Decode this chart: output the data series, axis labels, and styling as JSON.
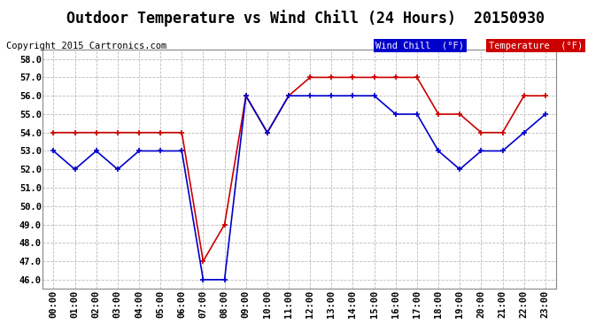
{
  "title": "Outdoor Temperature vs Wind Chill (24 Hours)  20150930",
  "copyright": "Copyright 2015 Cartronics.com",
  "background_color": "#ffffff",
  "grid_color": "#bbbbbb",
  "x_labels": [
    "00:00",
    "01:00",
    "02:00",
    "03:00",
    "04:00",
    "05:00",
    "06:00",
    "07:00",
    "08:00",
    "09:00",
    "10:00",
    "11:00",
    "12:00",
    "13:00",
    "14:00",
    "15:00",
    "16:00",
    "17:00",
    "18:00",
    "19:00",
    "20:00",
    "21:00",
    "22:00",
    "23:00"
  ],
  "ylim": [
    45.5,
    58.5
  ],
  "yticks": [
    46.0,
    47.0,
    48.0,
    49.0,
    50.0,
    51.0,
    52.0,
    53.0,
    54.0,
    55.0,
    56.0,
    57.0,
    58.0
  ],
  "temperature": [
    54.0,
    54.0,
    54.0,
    54.0,
    54.0,
    54.0,
    54.0,
    47.0,
    49.0,
    56.0,
    54.0,
    56.0,
    57.0,
    57.0,
    57.0,
    57.0,
    57.0,
    57.0,
    55.0,
    55.0,
    54.0,
    54.0,
    56.0,
    56.0
  ],
  "wind_chill": [
    53.0,
    52.0,
    53.0,
    52.0,
    53.0,
    53.0,
    53.0,
    46.0,
    46.0,
    56.0,
    54.0,
    56.0,
    56.0,
    56.0,
    56.0,
    56.0,
    55.0,
    55.0,
    53.0,
    52.0,
    53.0,
    53.0,
    54.0,
    55.0
  ],
  "temp_color": "#cc0000",
  "wind_color": "#0000cc",
  "legend_wind_bg": "#0000cc",
  "legend_temp_bg": "#cc0000",
  "legend_text_color": "#ffffff",
  "title_fontsize": 12,
  "axis_fontsize": 7.5,
  "copyright_fontsize": 7.5
}
